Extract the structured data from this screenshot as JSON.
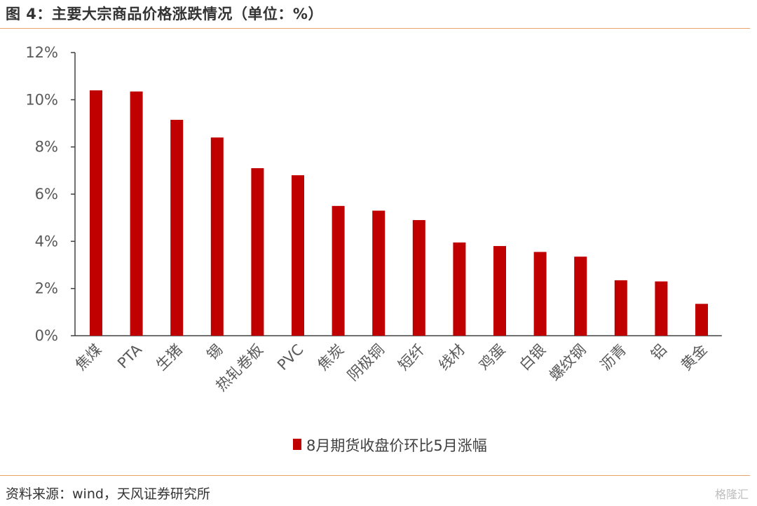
{
  "header": {
    "title": "图 4：主要大宗商品价格涨跌情况（单位：%）"
  },
  "footer": {
    "source": "资料来源：wind，天风证券研究所",
    "watermark": "格隆汇"
  },
  "colors": {
    "bar": "#c00000",
    "axis": "#404040",
    "rule": "#e8a36a"
  },
  "chart_data": {
    "type": "bar",
    "title": "",
    "xlabel": "",
    "ylabel": "",
    "categories": [
      "焦煤",
      "PTA",
      "生猪",
      "锡",
      "热轧卷板",
      "PVC",
      "焦炭",
      "阴极铜",
      "短纤",
      "线材",
      "鸡蛋",
      "白银",
      "螺纹钢",
      "沥青",
      "铝",
      "黄金"
    ],
    "series": [
      {
        "name": "8月期货收盘价环比5月涨幅",
        "values": [
          10.4,
          10.35,
          9.15,
          8.4,
          7.1,
          6.8,
          5.5,
          5.3,
          4.9,
          3.95,
          3.8,
          3.55,
          3.35,
          2.35,
          2.3,
          1.35
        ]
      }
    ],
    "ylim": [
      0,
      12
    ],
    "yticks": [
      0,
      2,
      4,
      6,
      8,
      10,
      12
    ],
    "ytick_format": "%",
    "grid": false,
    "legend_position": "bottom"
  }
}
